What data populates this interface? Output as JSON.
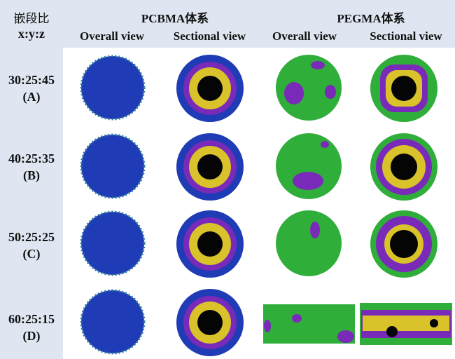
{
  "header": {
    "corner_line1": "嵌段比",
    "corner_line2": "x:y:z",
    "system_pcbma": "PCBMA体系",
    "system_pegma": "PEGMA体系",
    "views": [
      "Overall view",
      "Sectional view",
      "Overall view",
      "Sectional view"
    ]
  },
  "rows": [
    {
      "ratio": "30:25:45",
      "label": "(A)"
    },
    {
      "ratio": "40:25:35",
      "label": "(B)"
    },
    {
      "ratio": "50:25:25",
      "label": "(C)"
    },
    {
      "ratio": "60:25:15",
      "label": "(D)"
    }
  ],
  "colors": {
    "panel_background": "#dfe6f1",
    "blue_bead": "#1f3bb5",
    "green_bead": "#2fae3a",
    "purple_bead": "#7a2ab8",
    "yellow_bead": "#d9c22a",
    "core": "#050505"
  }
}
